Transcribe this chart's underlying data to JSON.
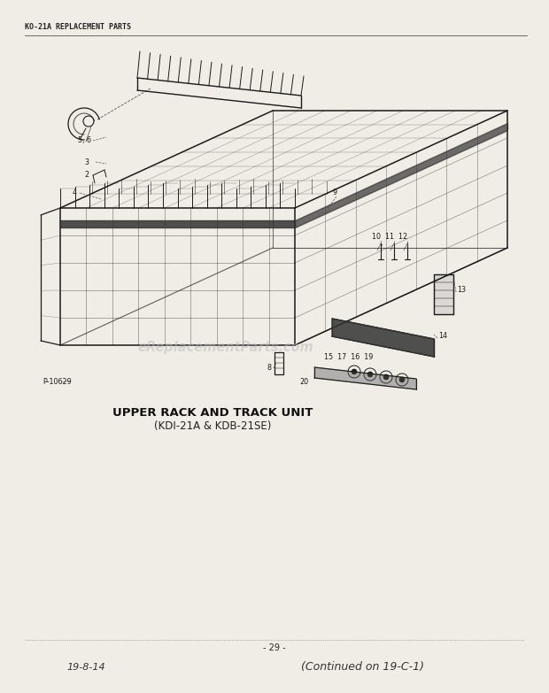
{
  "page_bg": "#f0ede6",
  "header_text": "KO-21A REPLACEMENT PARTS",
  "title_line1": "UPPER RACK AND TRACK UNIT",
  "title_line2": "(KDI-21A & KDB-21SE)",
  "page_number": "- 29 -",
  "bottom_left": "19-8-14",
  "bottom_right": "(Continued on 19-C-1)",
  "watermark": "eReplacementParts.com",
  "part_label": "P-10629",
  "line_color": "#2a2a2a",
  "text_color": "#222222",
  "diagram_color": "#1a1a1a",
  "light_line": "#666666"
}
